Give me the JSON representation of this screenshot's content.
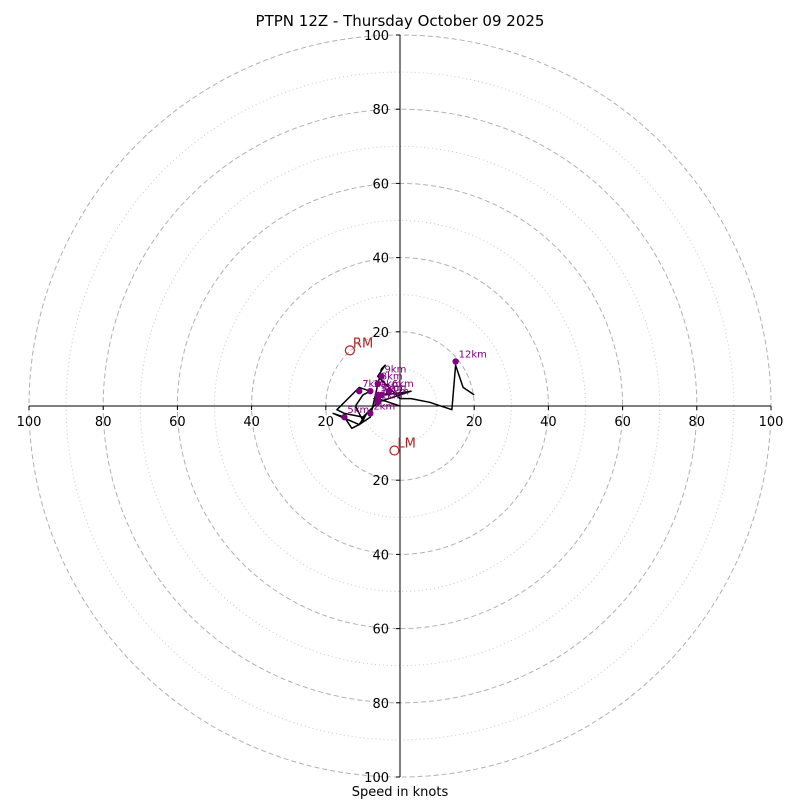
{
  "chart_data": {
    "type": "hodograph",
    "title": "PTPN 12Z - Thursday October 09 2025",
    "xlabel": "Speed in knots",
    "range": [
      -100,
      100
    ],
    "rings_dashed": [
      20,
      40,
      60,
      80,
      100
    ],
    "rings_dotted": [
      10,
      30,
      50,
      70,
      90
    ],
    "tick_labels_x": [
      "100",
      "80",
      "60",
      "40",
      "20",
      "20",
      "40",
      "60",
      "80",
      "100"
    ],
    "tick_values_x": [
      -100,
      -80,
      -60,
      -40,
      -20,
      20,
      40,
      60,
      80,
      100
    ],
    "tick_labels_y": [
      "100",
      "80",
      "60",
      "40",
      "20",
      "20",
      "40",
      "60",
      "80",
      "100"
    ],
    "tick_values_y": [
      100,
      80,
      60,
      40,
      20,
      -20,
      -40,
      -60,
      -80,
      -100
    ],
    "trace_color": "#000000",
    "marker_color": "#800080",
    "motion_color": "#b22222",
    "trace": [
      [
        0,
        0
      ],
      [
        -3,
        1
      ],
      [
        -6,
        2
      ],
      [
        -5,
        3
      ],
      [
        -7,
        2
      ],
      [
        -2,
        4
      ],
      [
        -4,
        3
      ],
      [
        3,
        4
      ],
      [
        -6,
        1
      ],
      [
        -10,
        -3
      ],
      [
        -15,
        -2
      ],
      [
        -17,
        -1
      ],
      [
        -13,
        3
      ],
      [
        -11,
        5
      ],
      [
        -8,
        4
      ],
      [
        -10,
        3
      ],
      [
        -12,
        0
      ],
      [
        -10,
        -4
      ],
      [
        -9,
        -2
      ],
      [
        -11,
        -5
      ],
      [
        -13,
        -6
      ],
      [
        -15,
        -3
      ],
      [
        -18,
        -2
      ],
      [
        -11,
        -5
      ],
      [
        -8,
        -3
      ],
      [
        -5,
        10
      ],
      [
        -4,
        11
      ],
      [
        -6,
        8
      ],
      [
        -3,
        5
      ],
      [
        0,
        2
      ],
      [
        3,
        2
      ],
      [
        8,
        1
      ],
      [
        14,
        -1
      ],
      [
        15,
        11
      ],
      [
        17,
        5
      ],
      [
        20,
        3
      ]
    ],
    "height_markers": [
      {
        "label": "1km",
        "u": -6,
        "v": 1
      },
      {
        "label": "2km",
        "u": -8,
        "v": -2
      },
      {
        "label": "3km",
        "u": -6,
        "v": 3
      },
      {
        "label": "4km",
        "u": -5,
        "v": 3
      },
      {
        "label": "5km",
        "u": -15,
        "v": -3
      },
      {
        "label": "6km",
        "u": -3,
        "v": 4
      },
      {
        "label": "7km",
        "u": -11,
        "v": 4
      },
      {
        "label": "8km",
        "u": -6,
        "v": 6
      },
      {
        "label": "9km",
        "u": -5,
        "v": 8
      },
      {
        "label": "10km",
        "u": -8,
        "v": 4
      },
      {
        "label": "11km",
        "u": -6,
        "v": 2
      },
      {
        "label": "12km",
        "u": 15,
        "v": 12
      }
    ],
    "storm_motion": [
      {
        "label": "RM",
        "u": -13.5,
        "v": 15
      },
      {
        "label": "LM",
        "u": -1.5,
        "v": -12
      }
    ]
  }
}
